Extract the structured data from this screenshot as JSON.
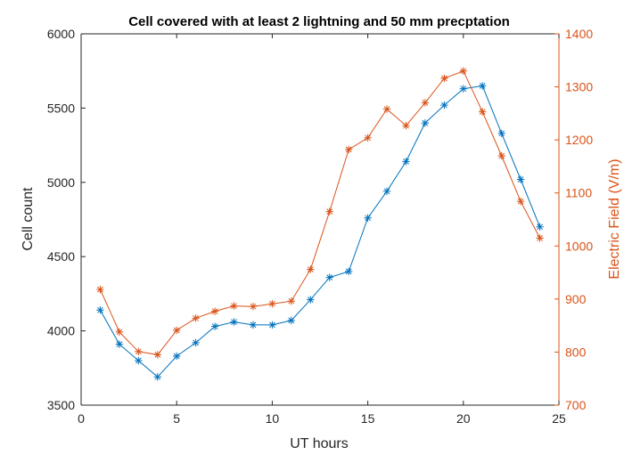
{
  "chart_data": {
    "type": "line",
    "title": "Cell covered with at least 2 lightning and 50 mm precptation",
    "xlabel": "UT hours",
    "ylabel": "Cell count",
    "y2label": "Electric Field (V/m)",
    "xlim": [
      0,
      25
    ],
    "ylim": [
      3500,
      6000
    ],
    "y2lim": [
      700,
      1400
    ],
    "xticks": [
      "0",
      "5",
      "10",
      "15",
      "20",
      "25"
    ],
    "yticks": [
      "3500",
      "4000",
      "4500",
      "5000",
      "5500",
      "6000"
    ],
    "y2ticks": [
      "700",
      "800",
      "900",
      "1000",
      "1100",
      "1200",
      "1300",
      "1400"
    ],
    "grid": false,
    "legend": "none",
    "colors": {
      "left": "#0072BD",
      "right": "#D95319",
      "axis": "#262626"
    },
    "marker": "asterisk",
    "x": [
      1,
      2,
      3,
      4,
      5,
      6,
      7,
      8,
      9,
      10,
      11,
      12,
      13,
      14,
      15,
      16,
      17,
      18,
      19,
      20,
      21,
      22,
      23,
      24
    ],
    "series": [
      {
        "axis": "left",
        "values": [
          4140,
          3910,
          3800,
          3690,
          3830,
          3920,
          4030,
          4060,
          4040,
          4040,
          4070,
          4210,
          4360,
          4400,
          4760,
          4940,
          5140,
          5400,
          5520,
          5630,
          5650,
          5330,
          5020,
          4700
        ]
      },
      {
        "axis": "right",
        "values": [
          918,
          838,
          801,
          795,
          841,
          864,
          877,
          887,
          886,
          891,
          896,
          956,
          1065,
          1182,
          1204,
          1258,
          1227,
          1270,
          1316,
          1330,
          1253,
          1170,
          1084,
          1015
        ]
      }
    ]
  }
}
